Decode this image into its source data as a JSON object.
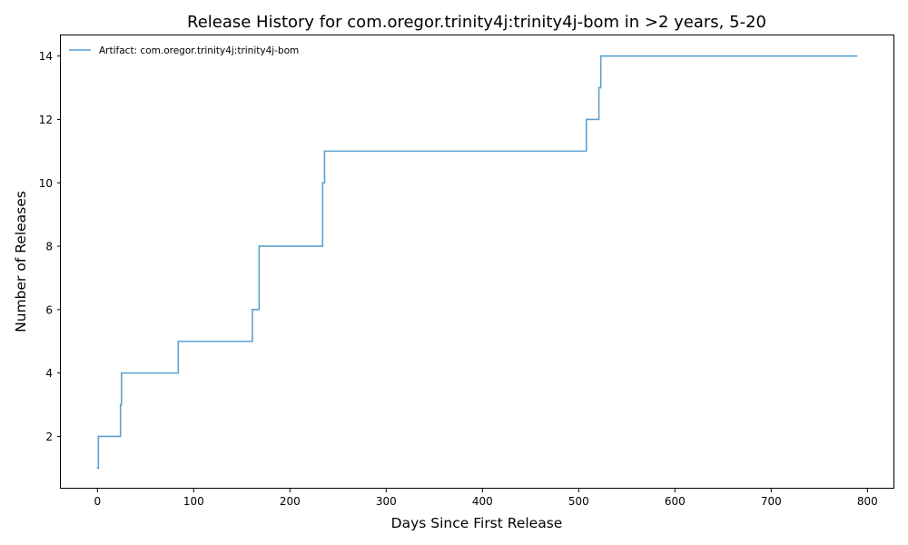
{
  "chart_data": {
    "type": "line",
    "step": true,
    "title": "Release History for com.oregor.trinity4j:trinity4j-bom in >2 years, 5-20",
    "xlabel": "Days Since First Release",
    "ylabel": "Number of Releases",
    "xlim": [
      -38,
      828
    ],
    "ylim": [
      0.35,
      14.65
    ],
    "xticks": [
      0,
      100,
      200,
      300,
      400,
      500,
      600,
      700,
      800
    ],
    "yticks": [
      2,
      4,
      6,
      8,
      10,
      12,
      14
    ],
    "grid": false,
    "legend": {
      "placement": "top-left"
    },
    "series": [
      {
        "name": "Artifact: com.oregor.trinity4j:trinity4j-bom",
        "color": "#5ca1d0",
        "points": [
          {
            "x": 0,
            "y": 1
          },
          {
            "x": 1,
            "y": 2
          },
          {
            "x": 24,
            "y": 3
          },
          {
            "x": 25,
            "y": 4
          },
          {
            "x": 84,
            "y": 5
          },
          {
            "x": 161,
            "y": 6
          },
          {
            "x": 168,
            "y": 8
          },
          {
            "x": 234,
            "y": 10
          },
          {
            "x": 236,
            "y": 11
          },
          {
            "x": 508,
            "y": 12
          },
          {
            "x": 521,
            "y": 13
          },
          {
            "x": 523,
            "y": 14
          },
          {
            "x": 789,
            "y": 14
          }
        ]
      }
    ]
  }
}
